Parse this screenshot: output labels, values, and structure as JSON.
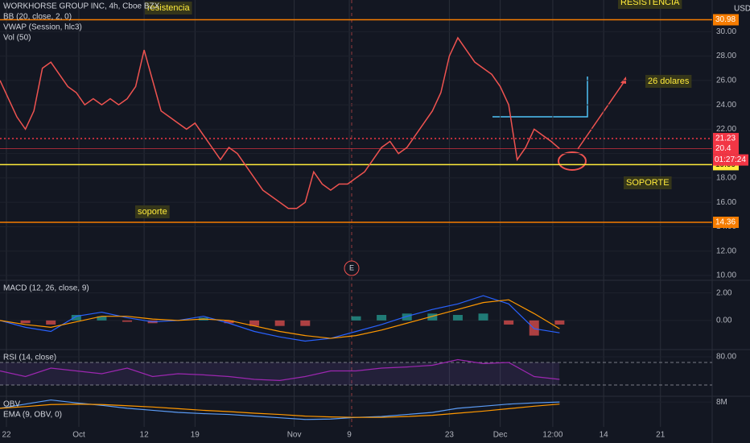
{
  "chart_data": [
    {
      "type": "line",
      "labels": [
        "WORKHORSE GROUP INC, 4h, Cboe BZX",
        "BB (20, close, 2, 0)",
        "VWAP (Session, hlc3)",
        "Vol (50)"
      ],
      "currency": "USD",
      "x": [
        0,
        1,
        2,
        3,
        4,
        5,
        6,
        7,
        8,
        9,
        10,
        11,
        12,
        13,
        14,
        15,
        16,
        17,
        18,
        19,
        20,
        21,
        22,
        23,
        24,
        25,
        26,
        27,
        28,
        29,
        30,
        31,
        32,
        33,
        34,
        35,
        36,
        37,
        38,
        39,
        40,
        41,
        42,
        43,
        44,
        45,
        46,
        47,
        48,
        49,
        50,
        51,
        52,
        53,
        54,
        55,
        56,
        57,
        58,
        59,
        60,
        61,
        62,
        63,
        64,
        65,
        66
      ],
      "series": [
        {
          "color": "#ef5350",
          "values": [
            26.0,
            24.5,
            23.0,
            22.0,
            23.5,
            27.0,
            27.5,
            26.5,
            25.5,
            25.0,
            24.0,
            24.5,
            24.0,
            24.5,
            24.0,
            24.5,
            25.5,
            28.5,
            26.0,
            23.5,
            23.0,
            22.5,
            22.0,
            22.5,
            21.5,
            20.5,
            19.5,
            20.5,
            20.0,
            19.0,
            18.0,
            17.0,
            16.5,
            16.0,
            15.5,
            15.5,
            16.0,
            18.5,
            17.5,
            17.0,
            17.5,
            17.5,
            18.0,
            18.5,
            19.5,
            20.5,
            21.0,
            20.0,
            20.5,
            21.5,
            22.5,
            23.5,
            25.0,
            28.0,
            29.5,
            28.5,
            27.5,
            27.0,
            26.5,
            25.5,
            24.0,
            19.5,
            20.5,
            22.0,
            21.5,
            21.0,
            20.4
          ]
        }
      ],
      "xlim": [
        0,
        84
      ],
      "xticks": [
        {
          "value": 0.76,
          "label": "22"
        },
        {
          "value": 9.3,
          "label": "Oct"
        },
        {
          "value": 17,
          "label": "12"
        },
        {
          "value": 23,
          "label": "19"
        },
        {
          "value": 34.7,
          "label": "Nov"
        },
        {
          "value": 41.2,
          "label": "9"
        },
        {
          "value": 53,
          "label": "23"
        },
        {
          "value": 59,
          "label": "Dec"
        },
        {
          "value": 65.2,
          "label": "12:00"
        },
        {
          "value": 71.2,
          "label": "14"
        },
        {
          "value": 77.9,
          "label": "21"
        }
      ],
      "ylim": [
        9.8,
        32.6
      ],
      "yticks": [
        {
          "value": 10,
          "label": "10.00"
        },
        {
          "value": 12,
          "label": "12.00"
        },
        {
          "value": 14,
          "label": "14.00"
        },
        {
          "value": 16,
          "label": "16.00"
        },
        {
          "value": 18,
          "label": "18.00"
        },
        {
          "value": 20,
          "label": "20.00"
        },
        {
          "value": 22,
          "label": "22.00"
        },
        {
          "value": 24,
          "label": "24.00"
        },
        {
          "value": 26,
          "label": "26.00"
        },
        {
          "value": 28,
          "label": "28.00"
        },
        {
          "value": 30,
          "label": "30.00"
        }
      ],
      "levels": [
        {
          "value": 30.98,
          "color": "#f57c00"
        },
        {
          "value": 21.23,
          "color": "#f23645",
          "style": "dotted"
        },
        {
          "value": 20.4,
          "color": "#f23645",
          "style": "faint"
        },
        {
          "value": 19.09,
          "color": "#ffeb3b"
        },
        {
          "value": 14.36,
          "color": "#f57c00"
        }
      ],
      "countdown": "01:27:24",
      "event": "E",
      "annotations": [
        "resistencia",
        "RESISTENCIA",
        "soporte",
        "SOPORTE",
        "26 dolares"
      ]
    },
    {
      "type": "line",
      "labels": [
        "MACD (12, 26, close, 9)"
      ],
      "x": [
        0,
        3,
        6,
        9,
        12,
        15,
        18,
        21,
        24,
        27,
        30,
        33,
        36,
        39,
        42,
        45,
        48,
        51,
        54,
        57,
        60,
        63,
        66
      ],
      "series": [
        {
          "color": "#2962ff",
          "values": [
            0,
            -0.5,
            -0.8,
            0.3,
            0.6,
            0.2,
            -0.1,
            0,
            0.3,
            -0.2,
            -0.8,
            -1.2,
            -1.5,
            -1.3,
            -0.8,
            -0.3,
            0.3,
            0.8,
            1.2,
            1.8,
            1.2,
            -0.6,
            -0.9
          ]
        },
        {
          "color": "#ff9800",
          "values": [
            0,
            -0.3,
            -0.5,
            -0.1,
            0.3,
            0.3,
            0.1,
            0,
            0.1,
            0,
            -0.4,
            -0.8,
            -1.1,
            -1.3,
            -1.1,
            -0.7,
            -0.2,
            0.3,
            0.8,
            1.3,
            1.5,
            0.5,
            -0.6
          ]
        }
      ],
      "histogram": [
        0,
        -0.2,
        -0.3,
        0.4,
        0.3,
        -0.1,
        -0.2,
        0,
        0.2,
        -0.2,
        -0.4,
        -0.4,
        -0.4,
        0,
        0.3,
        0.4,
        0.5,
        0.5,
        0.4,
        0.5,
        -0.3,
        -1.1,
        -0.3
      ],
      "ylim": [
        -2.0,
        2.8
      ],
      "yticks": [
        {
          "value": 0,
          "label": "0.00"
        },
        {
          "value": 2,
          "label": "2.00"
        }
      ]
    },
    {
      "type": "line",
      "labels": [
        "RSI (14, close)"
      ],
      "x": [
        0,
        3,
        6,
        9,
        12,
        15,
        18,
        21,
        24,
        27,
        30,
        33,
        36,
        39,
        42,
        45,
        48,
        51,
        54,
        57,
        60,
        63,
        66
      ],
      "series": [
        {
          "color": "#9c27b0",
          "values": [
            55,
            45,
            60,
            55,
            50,
            60,
            45,
            50,
            48,
            45,
            40,
            38,
            45,
            55,
            55,
            60,
            62,
            65,
            75,
            68,
            70,
            45,
            40
          ]
        }
      ],
      "bands": [
        30,
        70
      ],
      "ylim": [
        10,
        90
      ],
      "yticks": [
        {
          "value": 80,
          "label": "80.00"
        }
      ]
    },
    {
      "type": "line",
      "labels": [
        "OBV",
        "EMA (9, OBV, 0)"
      ],
      "x": [
        0,
        3,
        6,
        9,
        12,
        15,
        18,
        21,
        24,
        27,
        30,
        33,
        36,
        39,
        42,
        45,
        48,
        51,
        54,
        57,
        60,
        63,
        66
      ],
      "series": [
        {
          "color": "#5b9cf6",
          "values": [
            6.5,
            7.5,
            8.5,
            7.8,
            7.2,
            6.5,
            6.0,
            5.5,
            5.2,
            5.0,
            4.6,
            4.2,
            3.8,
            3.9,
            4.3,
            4.5,
            5.0,
            5.5,
            6.5,
            7.0,
            7.5,
            7.8,
            8.0
          ]
        },
        {
          "color": "#ff9800",
          "values": [
            6.5,
            6.9,
            7.4,
            7.5,
            7.4,
            7.1,
            6.8,
            6.4,
            6.0,
            5.7,
            5.3,
            5.0,
            4.6,
            4.4,
            4.3,
            4.3,
            4.5,
            4.8,
            5.3,
            5.8,
            6.4,
            7.0,
            7.5
          ]
        }
      ],
      "ylim": [
        2,
        9
      ],
      "yticks": [
        {
          "value": 8,
          "label": "8M"
        }
      ]
    }
  ]
}
